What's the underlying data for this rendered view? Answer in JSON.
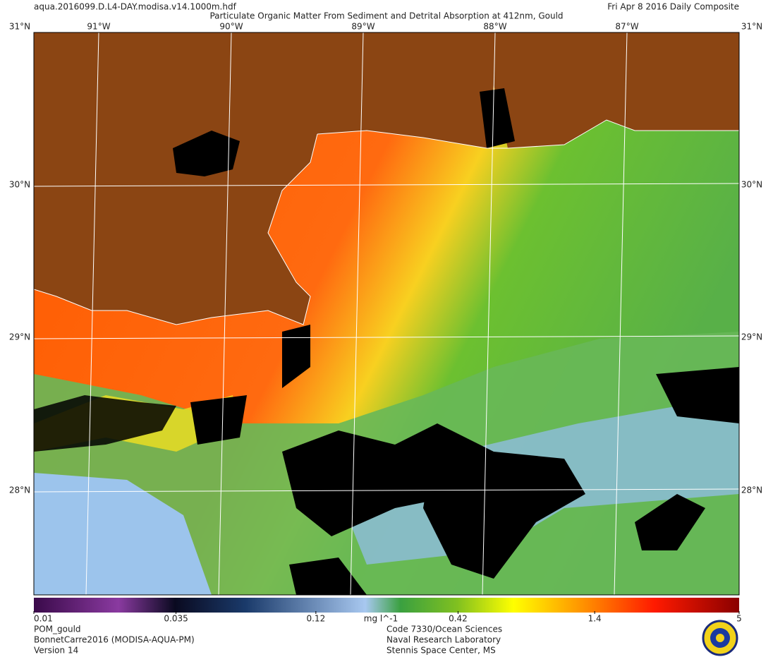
{
  "header": {
    "filename": "aqua.2016099.D.L4-DAY.modisa.v14.1000m.hdf",
    "title": "Particulate Organic Matter From Sediment and Detrital Absorption at 412nm, Gould",
    "date": "Fri Apr  8 2016 Daily Composite"
  },
  "graticule": {
    "lat_labels": [
      "31°N",
      "30°N",
      "29°N",
      "28°N"
    ],
    "lon_labels": [
      "91°W",
      "90°W",
      "89°W",
      "88°W",
      "87°W"
    ]
  },
  "colorbar": {
    "unit": "mg l^-1",
    "scale": "log",
    "lim": [
      0.01,
      5
    ],
    "ticks": [
      0.01,
      0.035,
      0.12,
      0.42,
      1.4,
      5
    ]
  },
  "footer": {
    "product": "POM_gould",
    "dataset": "BonnetCarre2016 (MODISA-AQUA-PM)",
    "version": "Version 14",
    "org": [
      "Code 7330/Ocean Sciences",
      "Naval Research Laboratory",
      "Stennis Space Center, MS"
    ]
  }
}
